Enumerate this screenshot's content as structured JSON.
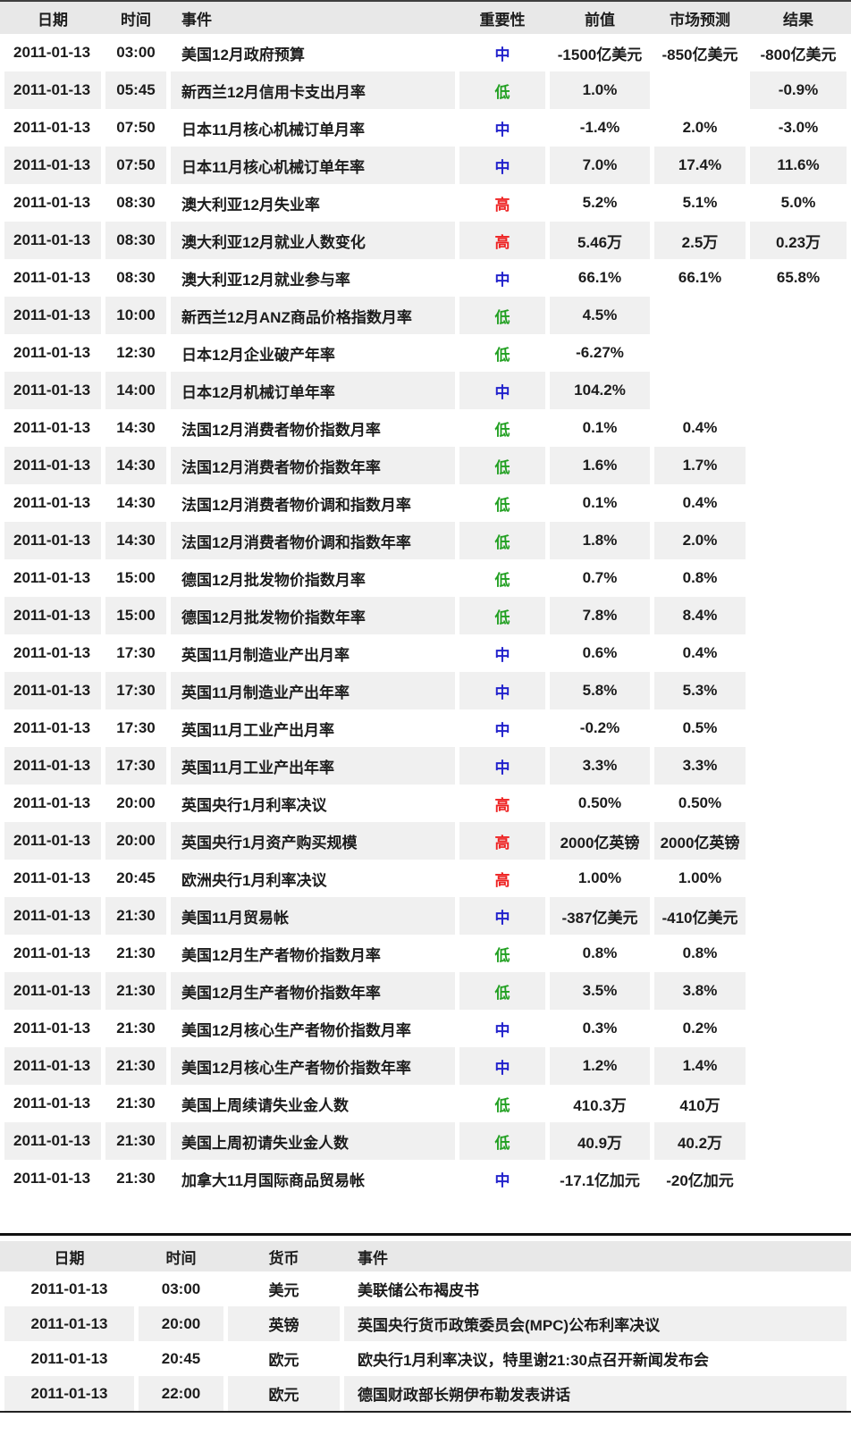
{
  "importance_colors": {
    "高": "#ee2222",
    "中": "#2222cc",
    "低": "#22a022"
  },
  "table1": {
    "headers": [
      "日期",
      "时间",
      "事件",
      "重要性",
      "前值",
      "市场预测",
      "结果"
    ],
    "rows": [
      [
        "2011-01-13",
        "03:00",
        "美国12月政府预算",
        "中",
        "-1500亿美元",
        "-850亿美元",
        "-800亿美元"
      ],
      [
        "2011-01-13",
        "05:45",
        "新西兰12月信用卡支出月率",
        "低",
        "1.0%",
        "",
        "-0.9%"
      ],
      [
        "2011-01-13",
        "07:50",
        "日本11月核心机械订单月率",
        "中",
        "-1.4%",
        "2.0%",
        "-3.0%"
      ],
      [
        "2011-01-13",
        "07:50",
        "日本11月核心机械订单年率",
        "中",
        "7.0%",
        "17.4%",
        "11.6%"
      ],
      [
        "2011-01-13",
        "08:30",
        "澳大利亚12月失业率",
        "高",
        "5.2%",
        "5.1%",
        "5.0%"
      ],
      [
        "2011-01-13",
        "08:30",
        "澳大利亚12月就业人数变化",
        "高",
        "5.46万",
        "2.5万",
        "0.23万"
      ],
      [
        "2011-01-13",
        "08:30",
        "澳大利亚12月就业参与率",
        "中",
        "66.1%",
        "66.1%",
        "65.8%"
      ],
      [
        "2011-01-13",
        "10:00",
        "新西兰12月ANZ商品价格指数月率",
        "低",
        "4.5%",
        "",
        ""
      ],
      [
        "2011-01-13",
        "12:30",
        "日本12月企业破产年率",
        "低",
        "-6.27%",
        "",
        ""
      ],
      [
        "2011-01-13",
        "14:00",
        "日本12月机械订单年率",
        "中",
        "104.2%",
        "",
        ""
      ],
      [
        "2011-01-13",
        "14:30",
        "法国12月消费者物价指数月率",
        "低",
        "0.1%",
        "0.4%",
        ""
      ],
      [
        "2011-01-13",
        "14:30",
        "法国12月消费者物价指数年率",
        "低",
        "1.6%",
        "1.7%",
        ""
      ],
      [
        "2011-01-13",
        "14:30",
        "法国12月消费者物价调和指数月率",
        "低",
        "0.1%",
        "0.4%",
        ""
      ],
      [
        "2011-01-13",
        "14:30",
        "法国12月消费者物价调和指数年率",
        "低",
        "1.8%",
        "2.0%",
        ""
      ],
      [
        "2011-01-13",
        "15:00",
        "德国12月批发物价指数月率",
        "低",
        "0.7%",
        "0.8%",
        ""
      ],
      [
        "2011-01-13",
        "15:00",
        "德国12月批发物价指数年率",
        "低",
        "7.8%",
        "8.4%",
        ""
      ],
      [
        "2011-01-13",
        "17:30",
        "英国11月制造业产出月率",
        "中",
        "0.6%",
        "0.4%",
        ""
      ],
      [
        "2011-01-13",
        "17:30",
        "英国11月制造业产出年率",
        "中",
        "5.8%",
        "5.3%",
        ""
      ],
      [
        "2011-01-13",
        "17:30",
        "英国11月工业产出月率",
        "中",
        "-0.2%",
        "0.5%",
        ""
      ],
      [
        "2011-01-13",
        "17:30",
        "英国11月工业产出年率",
        "中",
        "3.3%",
        "3.3%",
        ""
      ],
      [
        "2011-01-13",
        "20:00",
        "英国央行1月利率决议",
        "高",
        "0.50%",
        "0.50%",
        ""
      ],
      [
        "2011-01-13",
        "20:00",
        "英国央行1月资产购买规模",
        "高",
        "2000亿英镑",
        "2000亿英镑",
        ""
      ],
      [
        "2011-01-13",
        "20:45",
        "欧洲央行1月利率决议",
        "高",
        "1.00%",
        "1.00%",
        ""
      ],
      [
        "2011-01-13",
        "21:30",
        "美国11月贸易帐",
        "中",
        "-387亿美元",
        "-410亿美元",
        ""
      ],
      [
        "2011-01-13",
        "21:30",
        "美国12月生产者物价指数月率",
        "低",
        "0.8%",
        "0.8%",
        ""
      ],
      [
        "2011-01-13",
        "21:30",
        "美国12月生产者物价指数年率",
        "低",
        "3.5%",
        "3.8%",
        ""
      ],
      [
        "2011-01-13",
        "21:30",
        "美国12月核心生产者物价指数月率",
        "中",
        "0.3%",
        "0.2%",
        ""
      ],
      [
        "2011-01-13",
        "21:30",
        "美国12月核心生产者物价指数年率",
        "中",
        "1.2%",
        "1.4%",
        ""
      ],
      [
        "2011-01-13",
        "21:30",
        "美国上周续请失业金人数",
        "低",
        "410.3万",
        "410万",
        ""
      ],
      [
        "2011-01-13",
        "21:30",
        "美国上周初请失业金人数",
        "低",
        "40.9万",
        "40.2万",
        ""
      ],
      [
        "2011-01-13",
        "21:30",
        "加拿大11月国际商品贸易帐",
        "中",
        "-17.1亿加元",
        "-20亿加元",
        ""
      ]
    ]
  },
  "table2": {
    "headers": [
      "日期",
      "时间",
      "货币",
      "事件"
    ],
    "rows": [
      [
        "2011-01-13",
        "03:00",
        "美元",
        "美联储公布褐皮书"
      ],
      [
        "2011-01-13",
        "20:00",
        "英镑",
        "英国央行货币政策委员会(MPC)公布利率决议"
      ],
      [
        "2011-01-13",
        "20:45",
        "欧元",
        "欧央行1月利率决议，特里谢21:30点召开新闻发布会"
      ],
      [
        "2011-01-13",
        "22:00",
        "欧元",
        "德国财政部长朔伊布勒发表讲话"
      ]
    ]
  }
}
